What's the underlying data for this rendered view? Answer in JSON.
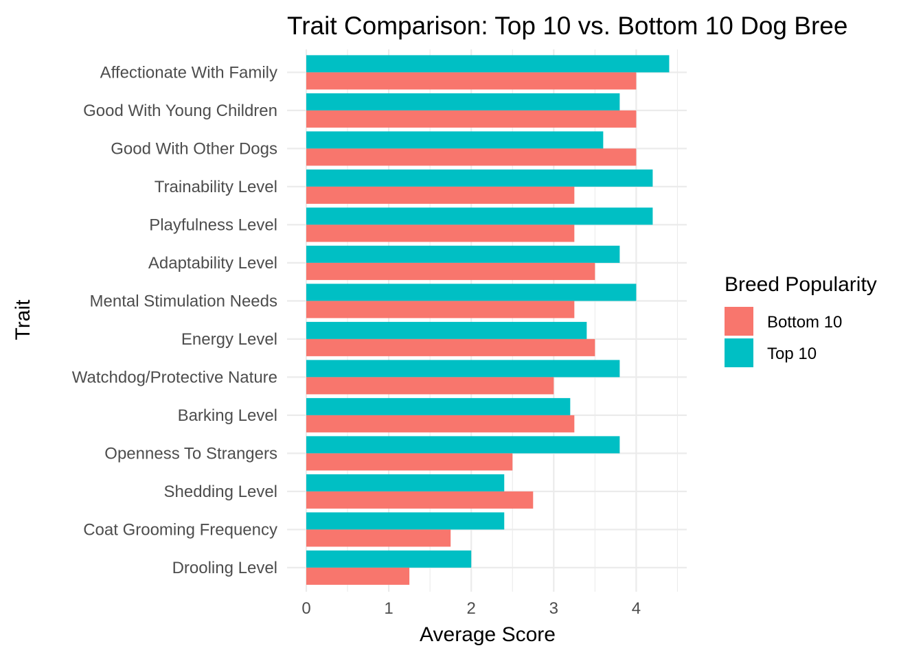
{
  "chart_data": {
    "type": "bar",
    "orientation": "horizontal",
    "title": "Trait Comparison: Top 10 vs. Bottom 10 Dog Bree",
    "xlabel": "Average Score",
    "ylabel": "Trait",
    "xlim": [
      0,
      4.6
    ],
    "x_ticks": [
      "0",
      "1",
      "2",
      "3",
      "4"
    ],
    "grid": true,
    "legend_title": "Breed Popularity",
    "legend_position": "right",
    "categories": [
      "Affectionate With Family",
      "Good With Young Children",
      "Good With Other Dogs",
      "Trainability Level",
      "Playfulness Level",
      "Adaptability Level",
      "Mental Stimulation Needs",
      "Energy Level",
      "Watchdog/Protective Nature",
      "Barking Level",
      "Openness To Strangers",
      "Shedding Level",
      "Coat Grooming Frequency",
      "Drooling Level"
    ],
    "series": [
      {
        "name": "Bottom 10",
        "color": "#F8766D",
        "values": [
          4.0,
          4.0,
          4.0,
          3.25,
          3.25,
          3.5,
          3.25,
          3.5,
          3.0,
          3.25,
          2.5,
          2.75,
          1.75,
          1.25
        ]
      },
      {
        "name": "Top 10",
        "color": "#00BFC4",
        "values": [
          4.4,
          3.8,
          3.6,
          4.2,
          4.2,
          3.8,
          4.0,
          3.4,
          3.8,
          3.2,
          3.8,
          2.4,
          2.4,
          2.0
        ]
      }
    ]
  }
}
